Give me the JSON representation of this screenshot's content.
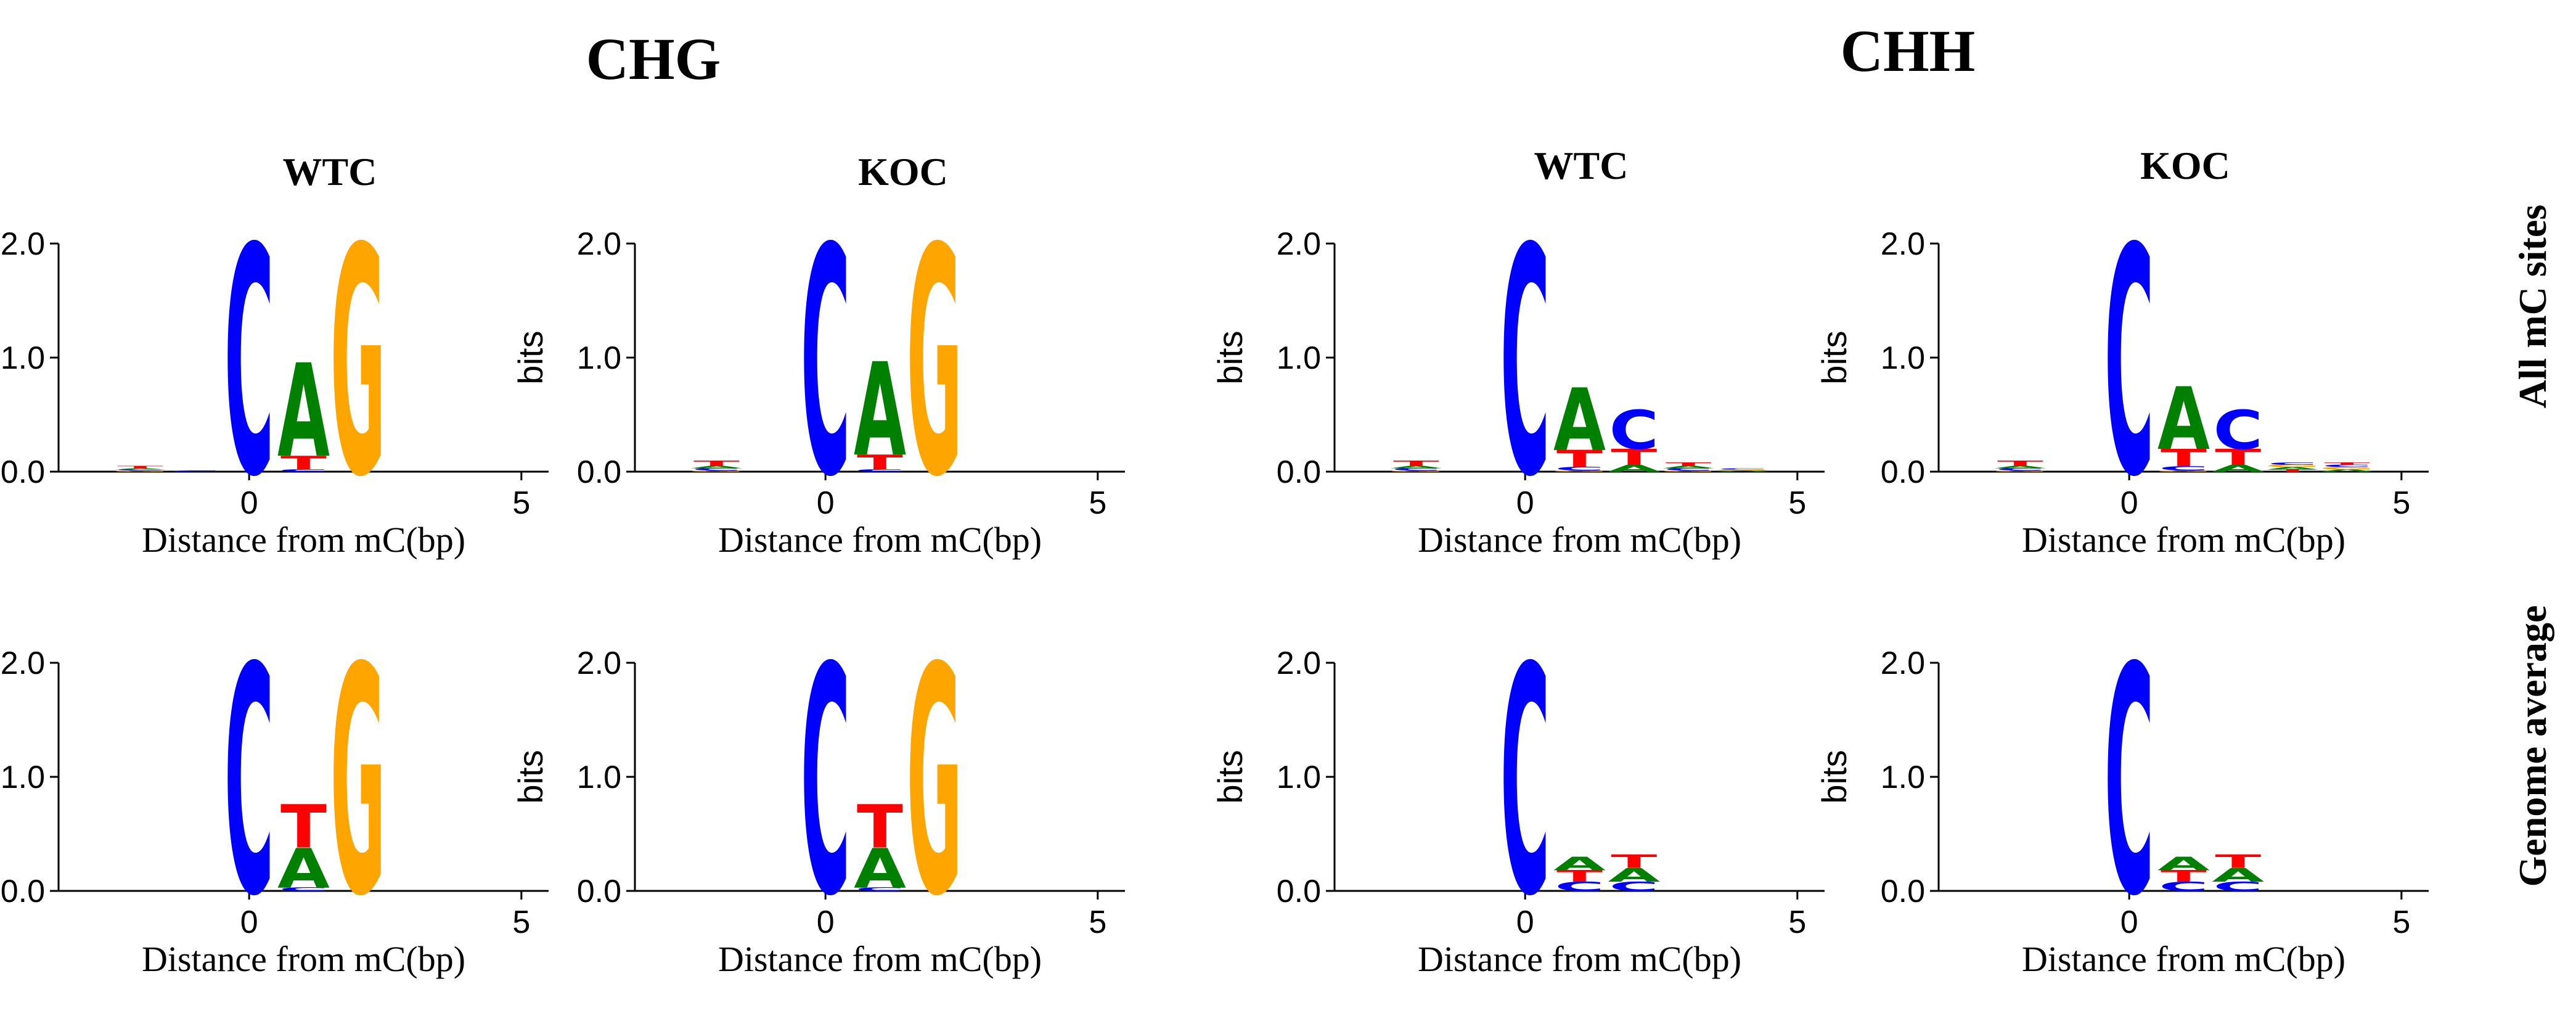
{
  "headers": {
    "chg": "CHG",
    "chh": "CHH",
    "wtc": "WTC",
    "koc": "KOC",
    "row_all": "All mC sites",
    "row_genome": "Genome average"
  },
  "colors": {
    "A": "#008000",
    "C": "#0000ff",
    "G": "#ffa500",
    "T": "#ff0000"
  },
  "chart_data": [
    {
      "type": "sequence-logo",
      "context": "CHG",
      "sample": "WTC",
      "row": "All mC sites",
      "xlabel": "Distance from mC(bp)",
      "ylabel": "bits",
      "ylim": [
        0,
        2
      ],
      "yticks": [
        "0.0",
        "1.0",
        "2.0"
      ],
      "xlim": [
        -3.5,
        5.5
      ],
      "xticks": [
        0,
        5
      ],
      "positions": [
        {
          "x": -2,
          "letters": [
            [
              "G",
              0.01
            ],
            [
              "C",
              0.01
            ],
            [
              "A",
              0.01
            ],
            [
              "T",
              0.02
            ]
          ]
        },
        {
          "x": -1,
          "letters": [
            [
              "C",
              0.01
            ]
          ]
        },
        {
          "x": 0,
          "letters": [
            [
              "C",
              2.0
            ]
          ]
        },
        {
          "x": 1,
          "letters": [
            [
              "C",
              0.02
            ],
            [
              "T",
              0.12
            ],
            [
              "A",
              0.82
            ]
          ]
        },
        {
          "x": 2,
          "letters": [
            [
              "G",
              2.0
            ]
          ]
        }
      ]
    },
    {
      "type": "sequence-logo",
      "context": "CHG",
      "sample": "KOC",
      "row": "All mC sites",
      "xlabel": "Distance from mC(bp)",
      "ylabel": "bits",
      "ylim": [
        0,
        2
      ],
      "yticks": [
        "0.0",
        "1.0",
        "2.0"
      ],
      "xlim": [
        -3.5,
        5.5
      ],
      "xticks": [
        0,
        5
      ],
      "positions": [
        {
          "x": -2,
          "letters": [
            [
              "G",
              0.01
            ],
            [
              "C",
              0.02
            ],
            [
              "A",
              0.02
            ],
            [
              "T",
              0.05
            ]
          ]
        },
        {
          "x": 0,
          "letters": [
            [
              "C",
              2.0
            ]
          ]
        },
        {
          "x": 1,
          "letters": [
            [
              "C",
              0.02
            ],
            [
              "T",
              0.13
            ],
            [
              "A",
              0.82
            ]
          ]
        },
        {
          "x": 2,
          "letters": [
            [
              "G",
              2.0
            ]
          ]
        }
      ]
    },
    {
      "type": "sequence-logo",
      "context": "CHH",
      "sample": "WTC",
      "row": "All mC sites",
      "xlabel": "Distance from mC(bp)",
      "ylabel": "bits",
      "ylim": [
        0,
        2
      ],
      "yticks": [
        "0.0",
        "1.0",
        "2.0"
      ],
      "xlim": [
        -3.5,
        5.5
      ],
      "xticks": [
        0,
        5
      ],
      "positions": [
        {
          "x": -2,
          "letters": [
            [
              "G",
              0.01
            ],
            [
              "C",
              0.02
            ],
            [
              "A",
              0.02
            ],
            [
              "T",
              0.05
            ]
          ]
        },
        {
          "x": 0,
          "letters": [
            [
              "C",
              2.0
            ]
          ]
        },
        {
          "x": 1,
          "letters": [
            [
              "G",
              0.01
            ],
            [
              "C",
              0.03
            ],
            [
              "T",
              0.15
            ],
            [
              "A",
              0.55
            ]
          ]
        },
        {
          "x": 2,
          "letters": [
            [
              "A",
              0.06
            ],
            [
              "T",
              0.14
            ],
            [
              "C",
              0.34
            ]
          ]
        },
        {
          "x": 3,
          "letters": [
            [
              "G",
              0.01
            ],
            [
              "C",
              0.02
            ],
            [
              "A",
              0.02
            ],
            [
              "T",
              0.03
            ]
          ]
        },
        {
          "x": 4,
          "letters": [
            [
              "A",
              0.01
            ],
            [
              "G",
              0.01
            ],
            [
              "C",
              0.01
            ]
          ]
        }
      ]
    },
    {
      "type": "sequence-logo",
      "context": "CHH",
      "sample": "KOC",
      "row": "All mC sites",
      "xlabel": "Distance from mC(bp)",
      "ylabel": "bits",
      "ylim": [
        0,
        2
      ],
      "yticks": [
        "0.0",
        "1.0",
        "2.0"
      ],
      "xlim": [
        -3.5,
        5.5
      ],
      "xticks": [
        0,
        5
      ],
      "positions": [
        {
          "x": -2,
          "letters": [
            [
              "G",
              0.01
            ],
            [
              "C",
              0.02
            ],
            [
              "A",
              0.02
            ],
            [
              "T",
              0.05
            ]
          ]
        },
        {
          "x": 0,
          "letters": [
            [
              "C",
              2.0
            ]
          ]
        },
        {
          "x": 1,
          "letters": [
            [
              "G",
              0.01
            ],
            [
              "C",
              0.04
            ],
            [
              "T",
              0.15
            ],
            [
              "A",
              0.55
            ]
          ]
        },
        {
          "x": 2,
          "letters": [
            [
              "A",
              0.06
            ],
            [
              "T",
              0.14
            ],
            [
              "C",
              0.34
            ]
          ]
        },
        {
          "x": 3,
          "letters": [
            [
              "T",
              0.02
            ],
            [
              "A",
              0.02
            ],
            [
              "G",
              0.02
            ],
            [
              "C",
              0.02
            ]
          ]
        },
        {
          "x": 4,
          "letters": [
            [
              "A",
              0.02
            ],
            [
              "G",
              0.02
            ],
            [
              "C",
              0.02
            ],
            [
              "T",
              0.02
            ]
          ]
        }
      ]
    },
    {
      "type": "sequence-logo",
      "context": "CHG",
      "sample": "WTC",
      "row": "Genome average",
      "xlabel": "Distance from mC(bp)",
      "ylabel": "bits",
      "ylim": [
        0,
        2
      ],
      "yticks": [
        "0.0",
        "1.0",
        "2.0"
      ],
      "xlim": [
        -3.5,
        5.5
      ],
      "xticks": [
        0,
        5
      ],
      "positions": [
        {
          "x": 0,
          "letters": [
            [
              "C",
              2.0
            ]
          ]
        },
        {
          "x": 1,
          "letters": [
            [
              "C",
              0.03
            ],
            [
              "A",
              0.35
            ],
            [
              "T",
              0.38
            ]
          ]
        },
        {
          "x": 2,
          "letters": [
            [
              "G",
              2.0
            ]
          ]
        }
      ]
    },
    {
      "type": "sequence-logo",
      "context": "CHG",
      "sample": "KOC",
      "row": "Genome average",
      "xlabel": "Distance from mC(bp)",
      "ylabel": "bits",
      "ylim": [
        0,
        2
      ],
      "yticks": [
        "0.0",
        "1.0",
        "2.0"
      ],
      "xlim": [
        -3.5,
        5.5
      ],
      "xticks": [
        0,
        5
      ],
      "positions": [
        {
          "x": 0,
          "letters": [
            [
              "C",
              2.0
            ]
          ]
        },
        {
          "x": 1,
          "letters": [
            [
              "C",
              0.03
            ],
            [
              "A",
              0.35
            ],
            [
              "T",
              0.38
            ]
          ]
        },
        {
          "x": 2,
          "letters": [
            [
              "G",
              2.0
            ]
          ]
        }
      ]
    },
    {
      "type": "sequence-logo",
      "context": "CHH",
      "sample": "WTC",
      "row": "Genome average",
      "xlabel": "Distance from mC(bp)",
      "ylabel": "bits",
      "ylim": [
        0,
        2
      ],
      "yticks": [
        "0.0",
        "1.0",
        "2.0"
      ],
      "xlim": [
        -3.5,
        5.5
      ],
      "xticks": [
        0,
        5
      ],
      "positions": [
        {
          "x": 0,
          "letters": [
            [
              "C",
              2.0
            ]
          ]
        },
        {
          "x": 1,
          "letters": [
            [
              "C",
              0.08
            ],
            [
              "T",
              0.1
            ],
            [
              "A",
              0.12
            ]
          ]
        },
        {
          "x": 2,
          "letters": [
            [
              "C",
              0.08
            ],
            [
              "A",
              0.12
            ],
            [
              "T",
              0.12
            ]
          ]
        }
      ]
    },
    {
      "type": "sequence-logo",
      "context": "CHH",
      "sample": "KOC",
      "row": "Genome average",
      "xlabel": "Distance from mC(bp)",
      "ylabel": "bits",
      "ylim": [
        0,
        2
      ],
      "yticks": [
        "0.0",
        "1.0",
        "2.0"
      ],
      "xlim": [
        -3.5,
        5.5
      ],
      "xticks": [
        0,
        5
      ],
      "positions": [
        {
          "x": 0,
          "letters": [
            [
              "C",
              2.0
            ]
          ]
        },
        {
          "x": 1,
          "letters": [
            [
              "C",
              0.08
            ],
            [
              "T",
              0.1
            ],
            [
              "A",
              0.12
            ]
          ]
        },
        {
          "x": 2,
          "letters": [
            [
              "C",
              0.08
            ],
            [
              "A",
              0.12
            ],
            [
              "T",
              0.12
            ]
          ]
        }
      ]
    }
  ]
}
